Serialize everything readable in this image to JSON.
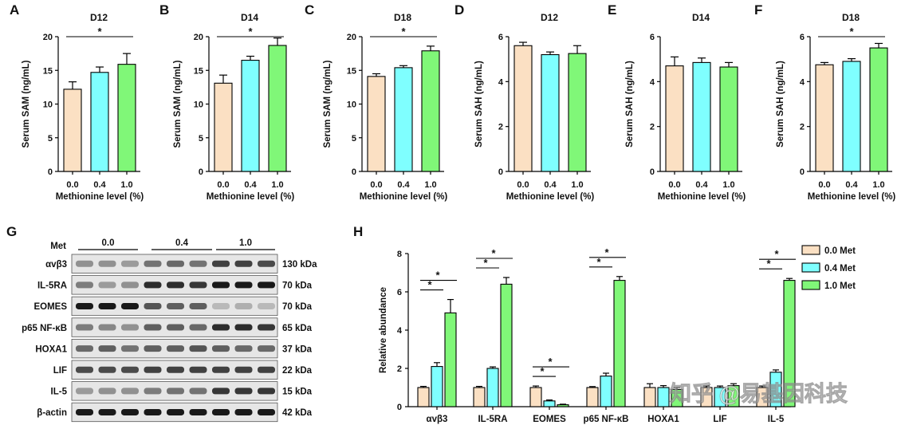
{
  "colors": {
    "met0": "#FBE0C3",
    "met04": "#7FFFFF",
    "met1": "#80F778",
    "axis": "#000000"
  },
  "watermark": "知乎 @易基因科技",
  "chart_data": [
    {
      "id": "A",
      "type": "bar",
      "title": "D12",
      "ylabel": "Serum SAM (ng/mL)",
      "xlabel": "Methionine level (%)",
      "categories": [
        "0.0",
        "0.4",
        "1.0"
      ],
      "values": [
        12.2,
        14.7,
        15.9
      ],
      "errors": [
        1.1,
        0.8,
        1.6
      ],
      "ylim": [
        0,
        20
      ],
      "yticks": [
        "0",
        "5",
        "10",
        "15",
        "20"
      ],
      "sig": [
        {
          "from": 0,
          "to": 2,
          "label": "*"
        }
      ]
    },
    {
      "id": "B",
      "type": "bar",
      "title": "D14",
      "ylabel": "Serum SAM (ng/mL)",
      "xlabel": "Methionine level (%)",
      "categories": [
        "0.0",
        "0.4",
        "1.0"
      ],
      "values": [
        13.1,
        16.5,
        18.7
      ],
      "errors": [
        1.2,
        0.6,
        1.1
      ],
      "ylim": [
        0,
        20
      ],
      "yticks": [
        "0",
        "5",
        "10",
        "15",
        "20"
      ],
      "sig": [
        {
          "from": 0,
          "to": 2,
          "label": "*"
        }
      ]
    },
    {
      "id": "C",
      "type": "bar",
      "title": "D18",
      "ylabel": "Serum SAM (ng/mL)",
      "xlabel": "Methionine level (%)",
      "categories": [
        "0.0",
        "0.4",
        "1.0"
      ],
      "values": [
        14.1,
        15.4,
        17.9
      ],
      "errors": [
        0.4,
        0.3,
        0.7
      ],
      "ylim": [
        0,
        20
      ],
      "yticks": [
        "0",
        "5",
        "10",
        "15",
        "20"
      ],
      "sig": [
        {
          "from": 0,
          "to": 2,
          "label": "*"
        }
      ]
    },
    {
      "id": "D",
      "type": "bar",
      "title": "D12",
      "ylabel": "Serum SAH (ng/mL)",
      "xlabel": "Methionine level (%)",
      "categories": [
        "0.0",
        "0.4",
        "1.0"
      ],
      "values": [
        5.6,
        5.2,
        5.25
      ],
      "errors": [
        0.15,
        0.12,
        0.35
      ],
      "ylim": [
        0,
        6
      ],
      "yticks": [
        "0",
        "2",
        "4",
        "6"
      ],
      "sig": []
    },
    {
      "id": "E",
      "type": "bar",
      "title": "D14",
      "ylabel": "Serum SAH (ng/mL)",
      "xlabel": "Methionine level (%)",
      "categories": [
        "0.0",
        "0.4",
        "1.0"
      ],
      "values": [
        4.7,
        4.85,
        4.65
      ],
      "errors": [
        0.4,
        0.2,
        0.2
      ],
      "ylim": [
        0,
        6
      ],
      "yticks": [
        "0",
        "2",
        "4",
        "6"
      ],
      "sig": []
    },
    {
      "id": "F",
      "type": "bar",
      "title": "D18",
      "ylabel": "Serum SAH (ng/mL)",
      "xlabel": "Methionine level (%)",
      "categories": [
        "0.0",
        "0.4",
        "1.0"
      ],
      "values": [
        4.75,
        4.9,
        5.5
      ],
      "errors": [
        0.1,
        0.12,
        0.2
      ],
      "ylim": [
        0,
        6
      ],
      "yticks": [
        "0",
        "2",
        "4",
        "6"
      ],
      "sig": [
        {
          "from": 0,
          "to": 2,
          "label": "*"
        }
      ]
    },
    {
      "id": "H",
      "type": "bar",
      "ylabel": "Relative abundance",
      "categories": [
        "αvβ3",
        "IL-5RA",
        "EOMES",
        "p65 NF-κB",
        "HOXA1",
        "LIF",
        "IL-5"
      ],
      "ylim": [
        0,
        8
      ],
      "yticks": [
        "0",
        "2",
        "4",
        "6",
        "8"
      ],
      "series": [
        {
          "name": "0.0 Met",
          "values": [
            1.0,
            1.0,
            1.0,
            1.0,
            1.0,
            1.0,
            1.0
          ],
          "errors": [
            0.06,
            0.06,
            0.08,
            0.05,
            0.2,
            0.08,
            0.08
          ]
        },
        {
          "name": "0.4 Met",
          "values": [
            2.1,
            2.0,
            0.3,
            1.6,
            1.0,
            1.0,
            1.8
          ],
          "errors": [
            0.2,
            0.08,
            0.05,
            0.15,
            0.1,
            0.08,
            0.12
          ]
        },
        {
          "name": "1.0 Met",
          "values": [
            4.9,
            6.4,
            0.1,
            6.6,
            0.9,
            1.1,
            6.6
          ],
          "errors": [
            0.7,
            0.35,
            0.03,
            0.2,
            0.1,
            0.1,
            0.1
          ]
        }
      ],
      "sig": [
        {
          "group": 0,
          "from": 0,
          "to": 1,
          "label": "*"
        },
        {
          "group": 0,
          "from": 0,
          "to": 2,
          "label": "*"
        },
        {
          "group": 1,
          "from": 0,
          "to": 1,
          "label": "*"
        },
        {
          "group": 1,
          "from": 0,
          "to": 2,
          "label": "*"
        },
        {
          "group": 2,
          "from": 0,
          "to": 1,
          "label": "*"
        },
        {
          "group": 2,
          "from": 0,
          "to": 2,
          "label": "*"
        },
        {
          "group": 3,
          "from": 0,
          "to": 1,
          "label": "*"
        },
        {
          "group": 3,
          "from": 0,
          "to": 2,
          "label": "*"
        },
        {
          "group": 6,
          "from": 0,
          "to": 1,
          "label": "*"
        },
        {
          "group": 6,
          "from": 0,
          "to": 2,
          "label": "*"
        }
      ]
    }
  ],
  "blot": {
    "panel_label": "G",
    "met_label": "Met",
    "groups": [
      "0.0",
      "0.4",
      "1.0"
    ],
    "rows": [
      {
        "protein": "αvβ3",
        "size": "130 kDa",
        "intensity": [
          0.35,
          0.35,
          0.3,
          0.5,
          0.55,
          0.5,
          0.75,
          0.75,
          0.7
        ]
      },
      {
        "protein": "IL-5RA",
        "size": "70 kDa",
        "intensity": [
          0.45,
          0.3,
          0.35,
          0.85,
          0.85,
          0.8,
          0.95,
          0.95,
          0.95
        ]
      },
      {
        "protein": "EOMES",
        "size": "70 kDa",
        "intensity": [
          0.95,
          0.95,
          0.95,
          0.65,
          0.6,
          0.6,
          0.15,
          0.2,
          0.15
        ]
      },
      {
        "protein": "p65 NF-κB",
        "size": "65 kDa",
        "intensity": [
          0.45,
          0.4,
          0.35,
          0.6,
          0.6,
          0.55,
          0.85,
          0.85,
          0.8
        ]
      },
      {
        "protein": "HOXA1",
        "size": "37 kDa",
        "intensity": [
          0.55,
          0.6,
          0.5,
          0.6,
          0.6,
          0.65,
          0.6,
          0.55,
          0.55
        ]
      },
      {
        "protein": "LIF",
        "size": "22 kDa",
        "intensity": [
          0.7,
          0.7,
          0.7,
          0.75,
          0.75,
          0.75,
          0.75,
          0.75,
          0.75
        ]
      },
      {
        "protein": "IL-5",
        "size": "15 kDa",
        "intensity": [
          0.3,
          0.35,
          0.35,
          0.45,
          0.5,
          0.5,
          0.8,
          0.8,
          0.8
        ]
      },
      {
        "protein": "β-actin",
        "size": "42 kDa",
        "intensity": [
          0.95,
          0.95,
          0.95,
          0.95,
          0.95,
          0.95,
          0.95,
          0.95,
          0.95
        ]
      }
    ]
  }
}
